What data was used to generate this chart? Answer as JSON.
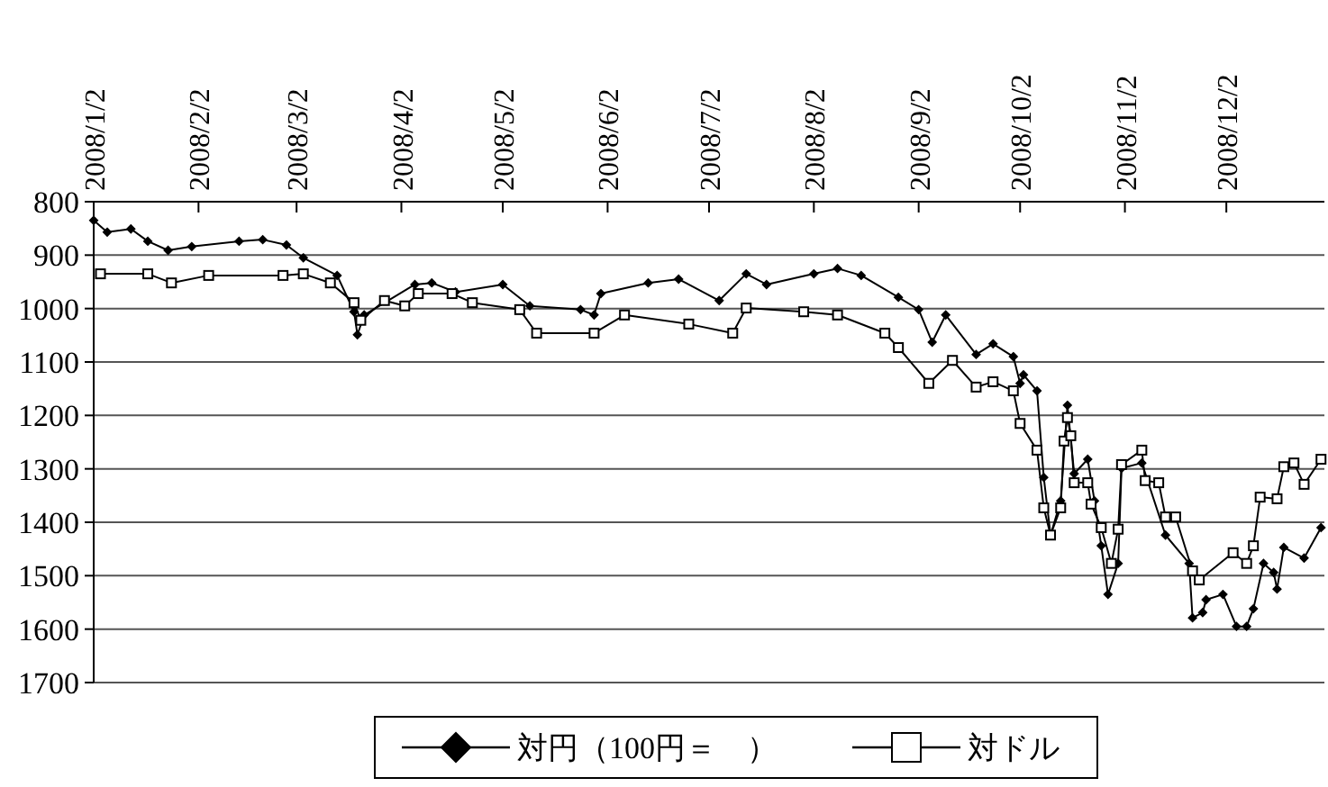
{
  "chart_data": {
    "type": "line",
    "grid": "y",
    "legend": "bottom",
    "line_style": "solid",
    "xlim": [
      "2008-01-02",
      "2008-12-31"
    ],
    "xticks": [
      {
        "value": "2008-01-02",
        "label": "2008/1/2"
      },
      {
        "value": "2008-02-02",
        "label": "2008/2/2"
      },
      {
        "value": "2008-03-02",
        "label": "2008/3/2"
      },
      {
        "value": "2008-04-02",
        "label": "2008/4/2"
      },
      {
        "value": "2008-05-02",
        "label": "2008/5/2"
      },
      {
        "value": "2008-06-02",
        "label": "2008/6/2"
      },
      {
        "value": "2008-07-02",
        "label": "2008/7/2"
      },
      {
        "value": "2008-08-02",
        "label": "2008/8/2"
      },
      {
        "value": "2008-09-02",
        "label": "2008/9/2"
      },
      {
        "value": "2008-10-02",
        "label": "2008/10/2"
      },
      {
        "value": "2008-11-02",
        "label": "2008/11/2"
      },
      {
        "value": "2008-12-02",
        "label": "2008/12/2"
      }
    ],
    "ylim": [
      1700,
      800
    ],
    "yticks": [
      800,
      900,
      1000,
      1100,
      1200,
      1300,
      1400,
      1500,
      1600,
      1700
    ],
    "series": [
      {
        "name": "対円（100円＝　）",
        "color": "#000000",
        "marker": "diamond",
        "x": [
          "2008-01-02",
          "2008-01-06",
          "2008-01-13",
          "2008-01-18",
          "2008-01-24",
          "2008-01-31",
          "2008-02-14",
          "2008-02-21",
          "2008-02-28",
          "2008-03-04",
          "2008-03-14",
          "2008-03-19",
          "2008-03-20",
          "2008-03-22",
          "2008-04-06",
          "2008-04-11",
          "2008-04-18",
          "2008-05-02",
          "2008-05-10",
          "2008-05-25",
          "2008-05-29",
          "2008-05-31",
          "2008-06-14",
          "2008-06-23",
          "2008-07-05",
          "2008-07-13",
          "2008-07-19",
          "2008-08-02",
          "2008-08-09",
          "2008-08-16",
          "2008-08-27",
          "2008-09-02",
          "2008-09-06",
          "2008-09-10",
          "2008-09-19",
          "2008-09-24",
          "2008-09-30",
          "2008-10-02",
          "2008-10-03",
          "2008-10-07",
          "2008-10-09",
          "2008-10-11",
          "2008-10-14",
          "2008-10-16",
          "2008-10-18",
          "2008-10-22",
          "2008-10-24",
          "2008-10-26",
          "2008-10-28",
          "2008-10-31",
          "2008-11-01",
          "2008-11-07",
          "2008-11-14",
          "2008-11-21",
          "2008-11-22",
          "2008-11-25",
          "2008-11-26",
          "2008-12-01",
          "2008-12-05",
          "2008-12-08",
          "2008-12-10",
          "2008-12-13",
          "2008-12-16",
          "2008-12-17",
          "2008-12-19",
          "2008-12-25",
          "2008-12-30"
        ],
        "values": [
          835,
          857,
          851,
          874,
          891,
          884,
          874,
          871,
          881,
          905,
          938,
          1006,
          1049,
          1012,
          955,
          952,
          969,
          955,
          995,
          1002,
          1012,
          972,
          952,
          945,
          985,
          935,
          955,
          935,
          925,
          938,
          979,
          1002,
          1063,
          1012,
          1086,
          1066,
          1090,
          1140,
          1124,
          1154,
          1316,
          1424,
          1360,
          1181,
          1309,
          1282,
          1360,
          1444,
          1535,
          1477,
          1299,
          1289,
          1424,
          1477,
          1579,
          1569,
          1545,
          1535,
          1595,
          1595,
          1562,
          1477,
          1494,
          1525,
          1447,
          1467,
          1410
        ]
      },
      {
        "name": "対ドル",
        "color": "#000000",
        "marker": "square",
        "x": [
          "2008-01-04",
          "2008-01-18",
          "2008-01-25",
          "2008-02-05",
          "2008-02-27",
          "2008-03-04",
          "2008-03-12",
          "2008-03-19",
          "2008-03-21",
          "2008-03-28",
          "2008-04-03",
          "2008-04-07",
          "2008-04-17",
          "2008-04-23",
          "2008-05-07",
          "2008-05-12",
          "2008-05-29",
          "2008-06-07",
          "2008-06-26",
          "2008-07-09",
          "2008-07-13",
          "2008-07-30",
          "2008-08-09",
          "2008-08-23",
          "2008-08-27",
          "2008-09-05",
          "2008-09-12",
          "2008-09-19",
          "2008-09-24",
          "2008-09-30",
          "2008-10-02",
          "2008-10-07",
          "2008-10-09",
          "2008-10-11",
          "2008-10-14",
          "2008-10-15",
          "2008-10-16",
          "2008-10-17",
          "2008-10-18",
          "2008-10-22",
          "2008-10-23",
          "2008-10-26",
          "2008-10-29",
          "2008-10-31",
          "2008-11-01",
          "2008-11-07",
          "2008-11-08",
          "2008-11-12",
          "2008-11-14",
          "2008-11-17",
          "2008-11-22",
          "2008-11-24",
          "2008-12-04",
          "2008-12-08",
          "2008-12-10",
          "2008-12-12",
          "2008-12-17",
          "2008-12-19",
          "2008-12-22",
          "2008-12-25",
          "2008-12-30"
        ],
        "values": [
          935,
          935,
          952,
          938,
          938,
          935,
          952,
          989,
          1022,
          985,
          995,
          972,
          972,
          989,
          1002,
          1046,
          1046,
          1012,
          1029,
          1046,
          999,
          1006,
          1012,
          1046,
          1073,
          1140,
          1097,
          1147,
          1137,
          1154,
          1215,
          1265,
          1373,
          1424,
          1373,
          1248,
          1204,
          1238,
          1326,
          1326,
          1366,
          1410,
          1477,
          1413,
          1292,
          1265,
          1322,
          1326,
          1390,
          1390,
          1491,
          1508,
          1457,
          1477,
          1444,
          1353,
          1356,
          1296,
          1289,
          1329,
          1282
        ]
      }
    ]
  }
}
